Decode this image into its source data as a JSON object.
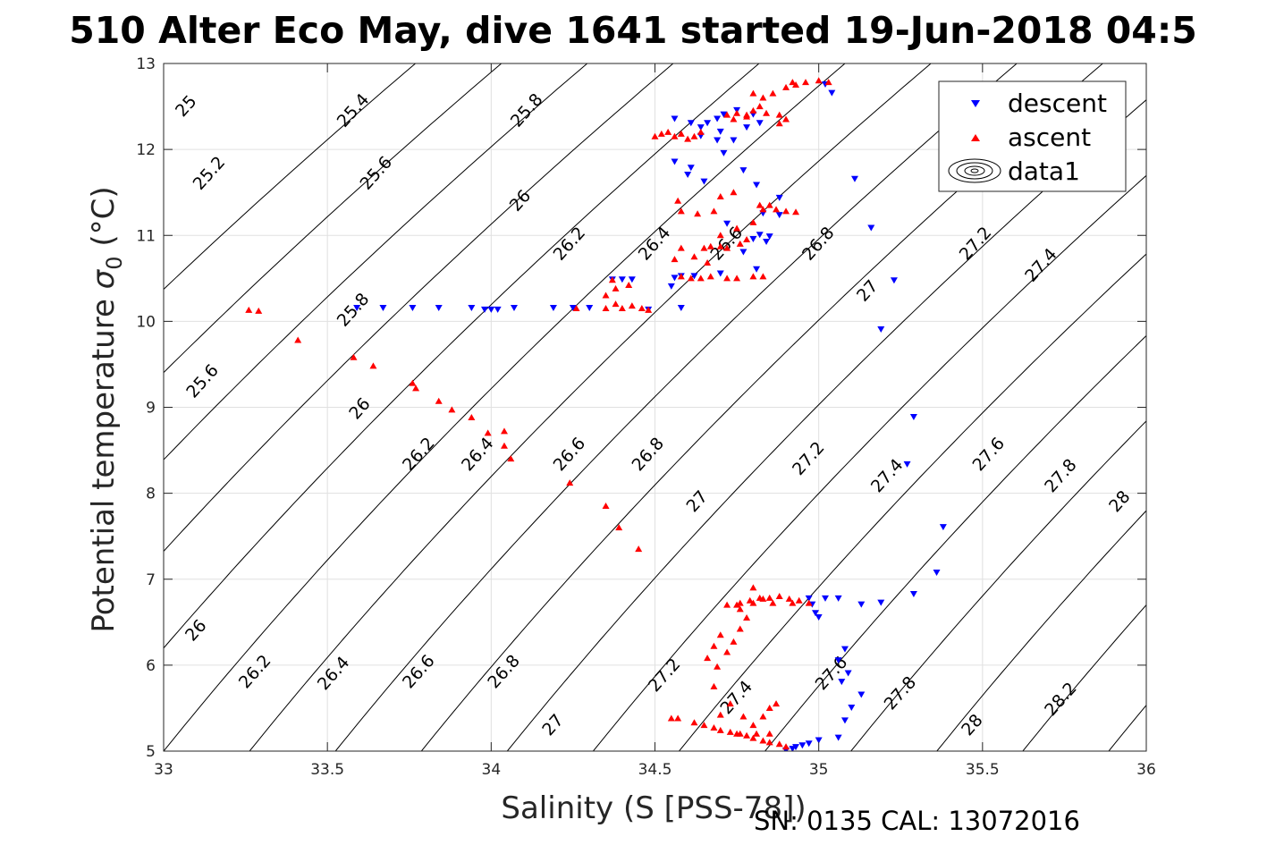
{
  "title": "510 Alter Eco May, dive 1641 started 19-Jun-2018 04:5",
  "footer": "SN: 0135  CAL: 13072016",
  "chart_data": {
    "type": "scatter",
    "xlabel": "Salinity (S [PSS-78])",
    "ylabel_main": "Potential temperature ",
    "ylabel_sym": "σ",
    "ylabel_sub": "0",
    "ylabel_unit": " (°C)",
    "xlim": [
      33,
      36
    ],
    "ylim": [
      5,
      13
    ],
    "xticks": [
      "33",
      "33.5",
      "34",
      "34.5",
      "35",
      "35.5",
      "36"
    ],
    "yticks": [
      "5",
      "6",
      "7",
      "8",
      "9",
      "10",
      "11",
      "12",
      "13"
    ],
    "grid": true,
    "legend_position": "top-right",
    "legend": [
      {
        "label": "descent",
        "marker": "triangle-down",
        "color": "#0000ff"
      },
      {
        "label": "ascent",
        "marker": "triangle-up",
        "color": "#ff0000"
      },
      {
        "label": "data1",
        "marker": "contour",
        "color": "#000000"
      }
    ],
    "contours": {
      "levels": [
        "25",
        "25.2",
        "25.4",
        "25.6",
        "25.8",
        "26",
        "26.2",
        "26.4",
        "26.6",
        "26.8",
        "27",
        "27.2",
        "27.4",
        "27.6",
        "27.8",
        "28",
        "28.2"
      ],
      "labels": [
        {
          "text": "25",
          "x": 33.07,
          "y": 12.5
        },
        {
          "text": "25.4",
          "x": 33.58,
          "y": 12.45
        },
        {
          "text": "25.8",
          "x": 34.11,
          "y": 12.45
        },
        {
          "text": "25.2",
          "x": 33.14,
          "y": 11.72
        },
        {
          "text": "25.6",
          "x": 33.65,
          "y": 11.72
        },
        {
          "text": "26",
          "x": 34.09,
          "y": 11.4
        },
        {
          "text": "26.2",
          "x": 34.24,
          "y": 10.9
        },
        {
          "text": "26.4",
          "x": 34.5,
          "y": 10.9
        },
        {
          "text": "26.6",
          "x": 34.72,
          "y": 10.9
        },
        {
          "text": "26.8",
          "x": 35.0,
          "y": 10.9
        },
        {
          "text": "27",
          "x": 35.15,
          "y": 10.35
        },
        {
          "text": "27.2",
          "x": 35.48,
          "y": 10.9
        },
        {
          "text": "27.4",
          "x": 35.68,
          "y": 10.65
        },
        {
          "text": "25.8",
          "x": 33.58,
          "y": 10.13
        },
        {
          "text": "25.6",
          "x": 33.12,
          "y": 9.3
        },
        {
          "text": "26",
          "x": 33.6,
          "y": 8.98
        },
        {
          "text": "26.2",
          "x": 33.78,
          "y": 8.45
        },
        {
          "text": "26.4",
          "x": 33.96,
          "y": 8.45
        },
        {
          "text": "26.6",
          "x": 34.24,
          "y": 8.45
        },
        {
          "text": "26.8",
          "x": 34.48,
          "y": 8.45
        },
        {
          "text": "27",
          "x": 34.63,
          "y": 7.9
        },
        {
          "text": "27.2",
          "x": 34.97,
          "y": 8.4
        },
        {
          "text": "27.4",
          "x": 35.21,
          "y": 8.2
        },
        {
          "text": "27.6",
          "x": 35.52,
          "y": 8.45
        },
        {
          "text": "27.8",
          "x": 35.74,
          "y": 8.2
        },
        {
          "text": "28",
          "x": 35.92,
          "y": 7.9
        },
        {
          "text": "26",
          "x": 33.1,
          "y": 6.4
        },
        {
          "text": "26.2",
          "x": 33.28,
          "y": 5.92
        },
        {
          "text": "26.4",
          "x": 33.52,
          "y": 5.9
        },
        {
          "text": "26.6",
          "x": 33.78,
          "y": 5.92
        },
        {
          "text": "26.8",
          "x": 34.04,
          "y": 5.92
        },
        {
          "text": "27",
          "x": 34.19,
          "y": 5.3
        },
        {
          "text": "27.2",
          "x": 34.53,
          "y": 5.88
        },
        {
          "text": "27.4",
          "x": 34.75,
          "y": 5.62
        },
        {
          "text": "27.6",
          "x": 35.04,
          "y": 5.9
        },
        {
          "text": "27.8",
          "x": 35.25,
          "y": 5.67
        },
        {
          "text": "28",
          "x": 35.47,
          "y": 5.3
        },
        {
          "text": "28.2",
          "x": 35.74,
          "y": 5.6
        }
      ]
    },
    "series": [
      {
        "name": "descent",
        "marker": "triangle-down",
        "color": "#0000ff",
        "points": [
          [
            34.9,
            5.0
          ],
          [
            34.92,
            5.02
          ],
          [
            34.93,
            5.04
          ],
          [
            34.95,
            5.06
          ],
          [
            34.97,
            5.08
          ],
          [
            35.0,
            5.12
          ],
          [
            35.06,
            5.15
          ],
          [
            35.08,
            5.35
          ],
          [
            35.1,
            5.5
          ],
          [
            35.13,
            5.65
          ],
          [
            35.07,
            5.8
          ],
          [
            35.09,
            5.9
          ],
          [
            35.06,
            6.05
          ],
          [
            35.08,
            6.18
          ],
          [
            35.0,
            6.55
          ],
          [
            34.99,
            6.6
          ],
          [
            34.98,
            6.7
          ],
          [
            34.97,
            6.77
          ],
          [
            35.02,
            6.77
          ],
          [
            35.06,
            6.77
          ],
          [
            35.13,
            6.7
          ],
          [
            35.19,
            6.72
          ],
          [
            35.29,
            6.82
          ],
          [
            35.36,
            7.07
          ],
          [
            35.38,
            7.6
          ],
          [
            35.27,
            8.33
          ],
          [
            35.29,
            8.88
          ],
          [
            35.19,
            9.9
          ],
          [
            35.23,
            10.47
          ],
          [
            35.16,
            11.08
          ],
          [
            35.11,
            11.65
          ],
          [
            35.04,
            12.65
          ],
          [
            35.02,
            12.75
          ],
          [
            34.56,
            12.35
          ],
          [
            34.61,
            12.3
          ],
          [
            34.64,
            12.25
          ],
          [
            34.66,
            12.3
          ],
          [
            34.69,
            12.35
          ],
          [
            34.71,
            12.4
          ],
          [
            34.75,
            12.45
          ],
          [
            34.8,
            12.4
          ],
          [
            34.7,
            12.2
          ],
          [
            34.64,
            12.15
          ],
          [
            34.69,
            12.1
          ],
          [
            34.74,
            12.1
          ],
          [
            34.78,
            12.25
          ],
          [
            34.82,
            12.3
          ],
          [
            34.71,
            11.95
          ],
          [
            34.56,
            11.85
          ],
          [
            34.61,
            11.78
          ],
          [
            34.6,
            11.7
          ],
          [
            34.65,
            11.62
          ],
          [
            34.77,
            11.75
          ],
          [
            34.81,
            11.58
          ],
          [
            34.88,
            11.43
          ],
          [
            34.83,
            11.25
          ],
          [
            34.88,
            11.23
          ],
          [
            34.72,
            11.13
          ],
          [
            34.82,
            11.0
          ],
          [
            34.8,
            10.95
          ],
          [
            34.84,
            10.92
          ],
          [
            34.85,
            10.98
          ],
          [
            34.77,
            10.8
          ],
          [
            34.81,
            10.6
          ],
          [
            34.7,
            10.55
          ],
          [
            34.62,
            10.52
          ],
          [
            34.58,
            10.52
          ],
          [
            34.56,
            10.5
          ],
          [
            34.55,
            10.4
          ],
          [
            34.58,
            10.15
          ],
          [
            34.48,
            10.13
          ],
          [
            34.43,
            10.48
          ],
          [
            34.4,
            10.48
          ],
          [
            34.37,
            10.48
          ],
          [
            34.3,
            10.15
          ],
          [
            34.25,
            10.15
          ],
          [
            34.19,
            10.15
          ],
          [
            34.07,
            10.15
          ],
          [
            34.02,
            10.13
          ],
          [
            34.0,
            10.13
          ],
          [
            33.98,
            10.13
          ],
          [
            33.94,
            10.15
          ],
          [
            33.84,
            10.15
          ],
          [
            33.76,
            10.15
          ],
          [
            33.67,
            10.15
          ],
          [
            33.59,
            10.15
          ]
        ]
      },
      {
        "name": "ascent",
        "marker": "triangle-up",
        "color": "#ff0000",
        "points": [
          [
            34.9,
            5.05
          ],
          [
            34.88,
            5.08
          ],
          [
            34.85,
            5.1
          ],
          [
            34.83,
            5.12
          ],
          [
            34.8,
            5.15
          ],
          [
            34.78,
            5.18
          ],
          [
            34.75,
            5.2
          ],
          [
            34.73,
            5.22
          ],
          [
            34.7,
            5.24
          ],
          [
            34.68,
            5.27
          ],
          [
            34.65,
            5.3
          ],
          [
            34.62,
            5.33
          ],
          [
            34.85,
            5.2
          ],
          [
            34.81,
            5.2
          ],
          [
            34.76,
            5.2
          ],
          [
            34.8,
            5.3
          ],
          [
            34.83,
            5.4
          ],
          [
            34.87,
            5.55
          ],
          [
            34.85,
            5.5
          ],
          [
            34.77,
            5.4
          ],
          [
            34.57,
            5.38
          ],
          [
            34.55,
            5.38
          ],
          [
            34.7,
            5.42
          ],
          [
            34.73,
            5.55
          ],
          [
            34.68,
            5.75
          ],
          [
            34.69,
            5.98
          ],
          [
            34.66,
            6.08
          ],
          [
            34.72,
            6.15
          ],
          [
            34.68,
            6.22
          ],
          [
            34.74,
            6.27
          ],
          [
            34.7,
            6.35
          ],
          [
            34.76,
            6.42
          ],
          [
            34.78,
            6.55
          ],
          [
            34.76,
            6.65
          ],
          [
            34.72,
            6.7
          ],
          [
            34.76,
            6.72
          ],
          [
            34.79,
            6.75
          ],
          [
            34.82,
            6.78
          ],
          [
            34.85,
            6.78
          ],
          [
            34.88,
            6.8
          ],
          [
            34.91,
            6.77
          ],
          [
            34.94,
            6.75
          ],
          [
            34.97,
            6.72
          ],
          [
            34.92,
            6.72
          ],
          [
            34.86,
            6.72
          ],
          [
            34.83,
            6.77
          ],
          [
            34.8,
            6.9
          ],
          [
            34.75,
            6.7
          ],
          [
            34.8,
            6.72
          ],
          [
            34.45,
            7.35
          ],
          [
            34.39,
            7.6
          ],
          [
            34.35,
            7.85
          ],
          [
            34.24,
            8.12
          ],
          [
            34.06,
            8.4
          ],
          [
            34.04,
            8.55
          ],
          [
            34.04,
            8.72
          ],
          [
            33.99,
            8.7
          ],
          [
            33.94,
            8.88
          ],
          [
            33.88,
            8.97
          ],
          [
            33.84,
            9.07
          ],
          [
            33.77,
            9.22
          ],
          [
            33.76,
            9.28
          ],
          [
            33.64,
            9.48
          ],
          [
            33.58,
            9.58
          ],
          [
            33.41,
            9.78
          ],
          [
            33.29,
            10.12
          ],
          [
            33.26,
            10.13
          ],
          [
            34.26,
            10.15
          ],
          [
            34.35,
            10.15
          ],
          [
            34.38,
            10.2
          ],
          [
            34.4,
            10.15
          ],
          [
            34.43,
            10.18
          ],
          [
            34.46,
            10.15
          ],
          [
            34.48,
            10.13
          ],
          [
            34.35,
            10.3
          ],
          [
            34.38,
            10.38
          ],
          [
            34.42,
            10.42
          ],
          [
            34.37,
            10.48
          ],
          [
            34.58,
            10.52
          ],
          [
            34.61,
            10.5
          ],
          [
            34.64,
            10.5
          ],
          [
            34.67,
            10.52
          ],
          [
            34.72,
            10.5
          ],
          [
            34.75,
            10.5
          ],
          [
            34.8,
            10.52
          ],
          [
            34.83,
            10.52
          ],
          [
            34.65,
            10.85
          ],
          [
            34.67,
            10.87
          ],
          [
            34.7,
            10.87
          ],
          [
            34.72,
            10.85
          ],
          [
            34.76,
            10.9
          ],
          [
            34.78,
            10.95
          ],
          [
            34.7,
            11.0
          ],
          [
            34.75,
            11.08
          ],
          [
            34.8,
            11.15
          ],
          [
            34.83,
            11.3
          ],
          [
            34.85,
            11.35
          ],
          [
            34.87,
            11.3
          ],
          [
            34.9,
            11.28
          ],
          [
            34.93,
            11.27
          ],
          [
            34.82,
            11.35
          ],
          [
            34.58,
            11.28
          ],
          [
            34.63,
            11.25
          ],
          [
            34.68,
            11.28
          ],
          [
            34.7,
            11.45
          ],
          [
            34.74,
            11.5
          ],
          [
            34.57,
            11.4
          ],
          [
            34.58,
            10.85
          ],
          [
            34.56,
            10.72
          ],
          [
            34.62,
            10.75
          ],
          [
            34.66,
            10.68
          ],
          [
            34.5,
            12.15
          ],
          [
            34.52,
            12.18
          ],
          [
            34.54,
            12.2
          ],
          [
            34.56,
            12.15
          ],
          [
            34.58,
            12.18
          ],
          [
            34.6,
            12.12
          ],
          [
            34.62,
            12.15
          ],
          [
            34.64,
            12.2
          ],
          [
            34.72,
            12.4
          ],
          [
            34.75,
            12.42
          ],
          [
            34.78,
            12.38
          ],
          [
            34.8,
            12.45
          ],
          [
            34.82,
            12.5
          ],
          [
            34.84,
            12.42
          ],
          [
            34.88,
            12.4
          ],
          [
            34.8,
            12.65
          ],
          [
            34.83,
            12.6
          ],
          [
            34.86,
            12.65
          ],
          [
            34.9,
            12.72
          ],
          [
            34.93,
            12.75
          ],
          [
            34.96,
            12.78
          ],
          [
            35.0,
            12.8
          ],
          [
            35.03,
            12.78
          ],
          [
            34.92,
            12.78
          ],
          [
            34.74,
            12.35
          ],
          [
            34.78,
            12.4
          ],
          [
            34.88,
            12.3
          ],
          [
            34.9,
            12.35
          ]
        ]
      }
    ]
  }
}
